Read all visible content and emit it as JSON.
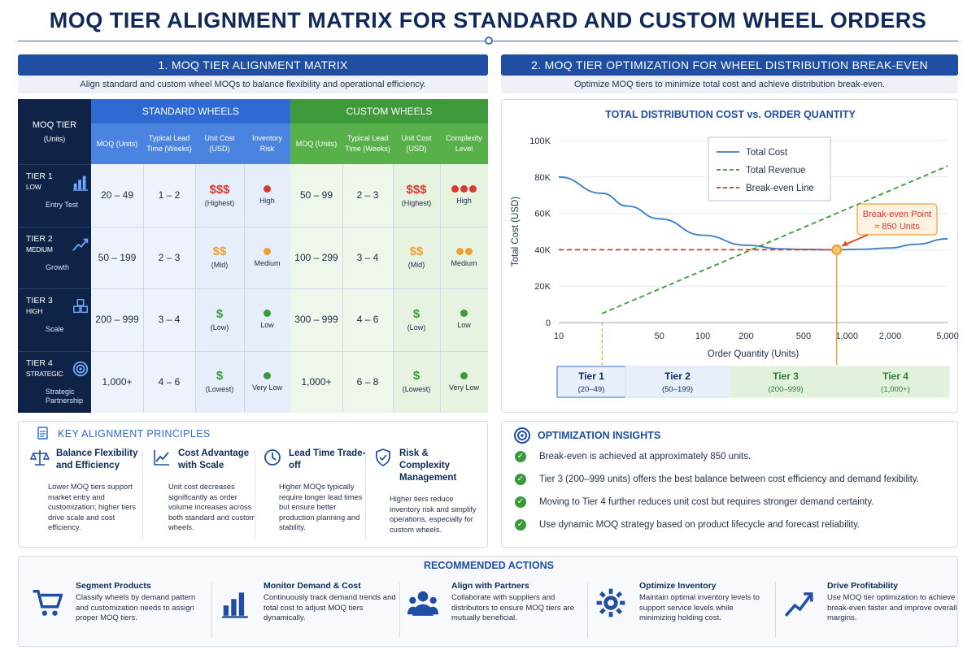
{
  "title": "MOQ TIER ALIGNMENT MATRIX FOR STANDARD AND CUSTOM WHEEL ORDERS",
  "section1": {
    "header": "1. MOQ TIER ALIGNMENT MATRIX",
    "subtitle": "Align standard and custom wheel MOQs to balance flexibility and operational efficiency."
  },
  "section2": {
    "header": "2. MOQ TIER OPTIMIZATION FOR WHEEL DISTRIBUTION BREAK-EVEN",
    "subtitle": "Optimize MOQ tiers to minimize total cost and achieve distribution break-even."
  },
  "matrix": {
    "tier_header": "MOQ TIER",
    "tier_header_sub": "(Units)",
    "standard_header": "STANDARD WHEELS",
    "custom_header": "CUSTOM WHEELS",
    "standard_cols": [
      "MOQ (Units)",
      "Typical Lead Time (Weeks)",
      "Unit Cost (USD)",
      "Inventory Risk"
    ],
    "custom_cols": [
      "MOQ (Units)",
      "Typical Lead Time (Weeks)",
      "Unit Cost (USD)",
      "Complexity Level"
    ],
    "rows": [
      {
        "tier": "TIER 1",
        "level": "LOW",
        "icon": "bar-chart-icon",
        "tag": "Entry Test",
        "std_moq": "20 – 49",
        "std_lead": "1 – 2",
        "std_cost": "$$$",
        "std_cost_lbl": "(Highest)",
        "std_risk": "High",
        "cus_moq": "50 – 99",
        "cus_lead": "2 – 3",
        "cus_cost": "$$$",
        "cus_cost_lbl": "(Highest)",
        "cus_cx": "High",
        "cost_color": "#d63a2f",
        "dots": 3
      },
      {
        "tier": "TIER 2",
        "level": "MEDIUM",
        "icon": "trend-up-icon",
        "tag": "Growth",
        "std_moq": "50 – 199",
        "std_lead": "2 – 3",
        "std_cost": "$$",
        "std_cost_lbl": "(Mid)",
        "std_risk": "Medium",
        "cus_moq": "100 – 299",
        "cus_lead": "3 – 4",
        "cus_cost": "$$",
        "cus_cost_lbl": "(Mid)",
        "cus_cx": "Medium",
        "cost_color": "#f0a030",
        "dots": 2
      },
      {
        "tier": "TIER 3",
        "level": "HIGH",
        "icon": "boxes-icon",
        "tag": "Scale",
        "std_moq": "200 – 999",
        "std_lead": "3 – 4",
        "std_cost": "$",
        "std_cost_lbl": "(Low)",
        "std_risk": "Low",
        "cus_moq": "300 – 999",
        "cus_lead": "4 – 6",
        "cus_cost": "$",
        "cus_cost_lbl": "(Low)",
        "cus_cx": "Low",
        "cost_color": "#3a9a3a",
        "dots": 1
      },
      {
        "tier": "TIER 4",
        "level": "STRATEGIC",
        "icon": "target-icon",
        "tag": "Strategic Partnership",
        "std_moq": "1,000+",
        "std_lead": "4 – 6",
        "std_cost": "$",
        "std_cost_lbl": "(Lowest)",
        "std_risk": "Very Low",
        "cus_moq": "1,000+",
        "cus_lead": "6 – 8",
        "cus_cost": "$",
        "cus_cost_lbl": "(Lowest)",
        "cus_cx": "Very Low",
        "cost_color": "#3a9a3a",
        "dots": 1
      }
    ]
  },
  "chart_data": {
    "type": "line",
    "title": "TOTAL DISTRIBUTION COST vs. ORDER QUANTITY",
    "xlabel": "Order Quantity (Units)",
    "ylabel": "Total Cost (USD)",
    "x_ticks": [
      "10",
      "50",
      "100",
      "200",
      "500",
      "1,000",
      "2,000",
      "5,000"
    ],
    "y_ticks": [
      "0",
      "20K",
      "40K",
      "60K",
      "80K",
      "100K"
    ],
    "ylim": [
      0,
      100000
    ],
    "x_scale": "log",
    "legend_position": "top-center",
    "series": [
      {
        "name": "Total Cost",
        "color": "#3a7cc8",
        "style": "solid",
        "x": [
          10,
          20,
          30,
          50,
          100,
          200,
          350,
          500,
          850,
          1300,
          2000,
          3000,
          5000
        ],
        "y": [
          80000,
          71000,
          64000,
          57000,
          48000,
          42500,
          40500,
          40200,
          40000,
          40300,
          41000,
          43000,
          46000
        ]
      },
      {
        "name": "Total Revenue",
        "color": "#3a9a3a",
        "style": "dashed",
        "x": [
          20,
          5000
        ],
        "y": [
          5000,
          86000
        ]
      },
      {
        "name": "Break-even Line",
        "color": "#d63a2f",
        "style": "dashed",
        "x": [
          10,
          850
        ],
        "y": [
          40000,
          40000
        ]
      }
    ],
    "annotation": {
      "text": "Break-even Point",
      "subtext": "≈ 850 Units",
      "x": 850,
      "y": 40000
    }
  },
  "tier_bands": [
    {
      "label": "Tier 1",
      "range": "(20–49)"
    },
    {
      "label": "Tier 2",
      "range": "(50–199)"
    },
    {
      "label": "Tier 3",
      "range": "(200–999)"
    },
    {
      "label": "Tier 4",
      "range": "(1,000+)"
    }
  ],
  "principles": {
    "title": "KEY ALIGNMENT PRINCIPLES",
    "items": [
      {
        "title": "Balance Flexibility and Efficiency",
        "icon": "scale-icon",
        "text": "Lower MOQ tiers support market entry and customization; higher tiers drive scale and cost efficiency."
      },
      {
        "title": "Cost Advantage with Scale",
        "icon": "trend-icon",
        "text": "Unit cost decreases significantly as order volume increases across both standard and custom wheels."
      },
      {
        "title": "Lead Time Trade-off",
        "icon": "clock-icon",
        "text": "Higher MOQs typically require longer lead times but ensure better production planning and stability."
      },
      {
        "title": "Risk & Complexity Management",
        "icon": "shield-icon",
        "text": "Higher tiers reduce inventory risk and simplify operations, especially for custom wheels."
      }
    ]
  },
  "insights": {
    "title": "OPTIMIZATION INSIGHTS",
    "items": [
      "Break-even is achieved at approximately 850 units.",
      "Tier 3 (200–999 units) offers the best balance between cost efficiency and demand fexibility.",
      "Moving to Tier 4 further reduces unit cost but requires stronger demand certainty.",
      "Use dynamic MOQ strategy based on product lifecycle and forecast reliability."
    ]
  },
  "actions": {
    "title": "RECOMMENDED ACTIONS",
    "items": [
      {
        "title": "Segment Products",
        "icon": "cart-icon",
        "text": "Classify wheels by demand pattern and customization needs to assign proper MOQ tiers."
      },
      {
        "title": "Monitor Demand & Cost",
        "icon": "bar-chart-icon",
        "text": "Continuously track demand trends and total cost to adjust MOQ tiers dynamically."
      },
      {
        "title": "Align with Partners",
        "icon": "people-icon",
        "text": "Collaborate with suppliers and distributors to ensure MOQ tiers are mutually beneficial."
      },
      {
        "title": "Optimize Inventory",
        "icon": "gear-icon",
        "text": "Maintain optimal inventory levels to support service levels while minimizing holding cost."
      },
      {
        "title": "Drive Profitability",
        "icon": "growth-icon",
        "text": "Use MOQ tier optimization to achieve break-even faster and improve overall margins."
      }
    ]
  }
}
